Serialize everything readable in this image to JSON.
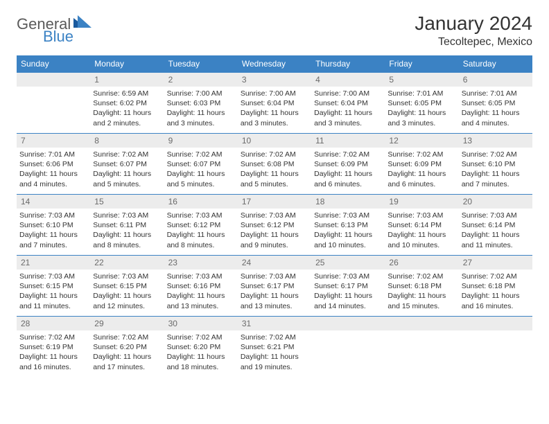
{
  "logo": {
    "text_general": "General",
    "text_blue": "Blue"
  },
  "header": {
    "month_title": "January 2024",
    "location": "Tecoltepec, Mexico"
  },
  "colors": {
    "header_bg": "#3b82c4",
    "header_text": "#ffffff",
    "daynum_bg": "#ececec",
    "daynum_text": "#6a6a6a",
    "body_text": "#333333",
    "logo_blue": "#3b82c4",
    "logo_gray": "#5a5a5a",
    "border": "#3b82c4"
  },
  "day_names": [
    "Sunday",
    "Monday",
    "Tuesday",
    "Wednesday",
    "Thursday",
    "Friday",
    "Saturday"
  ],
  "weeks": [
    [
      {
        "num": "",
        "sunrise": "",
        "sunset": "",
        "daylight": ""
      },
      {
        "num": "1",
        "sunrise": "Sunrise: 6:59 AM",
        "sunset": "Sunset: 6:02 PM",
        "daylight": "Daylight: 11 hours and 2 minutes."
      },
      {
        "num": "2",
        "sunrise": "Sunrise: 7:00 AM",
        "sunset": "Sunset: 6:03 PM",
        "daylight": "Daylight: 11 hours and 3 minutes."
      },
      {
        "num": "3",
        "sunrise": "Sunrise: 7:00 AM",
        "sunset": "Sunset: 6:04 PM",
        "daylight": "Daylight: 11 hours and 3 minutes."
      },
      {
        "num": "4",
        "sunrise": "Sunrise: 7:00 AM",
        "sunset": "Sunset: 6:04 PM",
        "daylight": "Daylight: 11 hours and 3 minutes."
      },
      {
        "num": "5",
        "sunrise": "Sunrise: 7:01 AM",
        "sunset": "Sunset: 6:05 PM",
        "daylight": "Daylight: 11 hours and 3 minutes."
      },
      {
        "num": "6",
        "sunrise": "Sunrise: 7:01 AM",
        "sunset": "Sunset: 6:05 PM",
        "daylight": "Daylight: 11 hours and 4 minutes."
      }
    ],
    [
      {
        "num": "7",
        "sunrise": "Sunrise: 7:01 AM",
        "sunset": "Sunset: 6:06 PM",
        "daylight": "Daylight: 11 hours and 4 minutes."
      },
      {
        "num": "8",
        "sunrise": "Sunrise: 7:02 AM",
        "sunset": "Sunset: 6:07 PM",
        "daylight": "Daylight: 11 hours and 5 minutes."
      },
      {
        "num": "9",
        "sunrise": "Sunrise: 7:02 AM",
        "sunset": "Sunset: 6:07 PM",
        "daylight": "Daylight: 11 hours and 5 minutes."
      },
      {
        "num": "10",
        "sunrise": "Sunrise: 7:02 AM",
        "sunset": "Sunset: 6:08 PM",
        "daylight": "Daylight: 11 hours and 5 minutes."
      },
      {
        "num": "11",
        "sunrise": "Sunrise: 7:02 AM",
        "sunset": "Sunset: 6:09 PM",
        "daylight": "Daylight: 11 hours and 6 minutes."
      },
      {
        "num": "12",
        "sunrise": "Sunrise: 7:02 AM",
        "sunset": "Sunset: 6:09 PM",
        "daylight": "Daylight: 11 hours and 6 minutes."
      },
      {
        "num": "13",
        "sunrise": "Sunrise: 7:02 AM",
        "sunset": "Sunset: 6:10 PM",
        "daylight": "Daylight: 11 hours and 7 minutes."
      }
    ],
    [
      {
        "num": "14",
        "sunrise": "Sunrise: 7:03 AM",
        "sunset": "Sunset: 6:10 PM",
        "daylight": "Daylight: 11 hours and 7 minutes."
      },
      {
        "num": "15",
        "sunrise": "Sunrise: 7:03 AM",
        "sunset": "Sunset: 6:11 PM",
        "daylight": "Daylight: 11 hours and 8 minutes."
      },
      {
        "num": "16",
        "sunrise": "Sunrise: 7:03 AM",
        "sunset": "Sunset: 6:12 PM",
        "daylight": "Daylight: 11 hours and 8 minutes."
      },
      {
        "num": "17",
        "sunrise": "Sunrise: 7:03 AM",
        "sunset": "Sunset: 6:12 PM",
        "daylight": "Daylight: 11 hours and 9 minutes."
      },
      {
        "num": "18",
        "sunrise": "Sunrise: 7:03 AM",
        "sunset": "Sunset: 6:13 PM",
        "daylight": "Daylight: 11 hours and 10 minutes."
      },
      {
        "num": "19",
        "sunrise": "Sunrise: 7:03 AM",
        "sunset": "Sunset: 6:14 PM",
        "daylight": "Daylight: 11 hours and 10 minutes."
      },
      {
        "num": "20",
        "sunrise": "Sunrise: 7:03 AM",
        "sunset": "Sunset: 6:14 PM",
        "daylight": "Daylight: 11 hours and 11 minutes."
      }
    ],
    [
      {
        "num": "21",
        "sunrise": "Sunrise: 7:03 AM",
        "sunset": "Sunset: 6:15 PM",
        "daylight": "Daylight: 11 hours and 11 minutes."
      },
      {
        "num": "22",
        "sunrise": "Sunrise: 7:03 AM",
        "sunset": "Sunset: 6:15 PM",
        "daylight": "Daylight: 11 hours and 12 minutes."
      },
      {
        "num": "23",
        "sunrise": "Sunrise: 7:03 AM",
        "sunset": "Sunset: 6:16 PM",
        "daylight": "Daylight: 11 hours and 13 minutes."
      },
      {
        "num": "24",
        "sunrise": "Sunrise: 7:03 AM",
        "sunset": "Sunset: 6:17 PM",
        "daylight": "Daylight: 11 hours and 13 minutes."
      },
      {
        "num": "25",
        "sunrise": "Sunrise: 7:03 AM",
        "sunset": "Sunset: 6:17 PM",
        "daylight": "Daylight: 11 hours and 14 minutes."
      },
      {
        "num": "26",
        "sunrise": "Sunrise: 7:02 AM",
        "sunset": "Sunset: 6:18 PM",
        "daylight": "Daylight: 11 hours and 15 minutes."
      },
      {
        "num": "27",
        "sunrise": "Sunrise: 7:02 AM",
        "sunset": "Sunset: 6:18 PM",
        "daylight": "Daylight: 11 hours and 16 minutes."
      }
    ],
    [
      {
        "num": "28",
        "sunrise": "Sunrise: 7:02 AM",
        "sunset": "Sunset: 6:19 PM",
        "daylight": "Daylight: 11 hours and 16 minutes."
      },
      {
        "num": "29",
        "sunrise": "Sunrise: 7:02 AM",
        "sunset": "Sunset: 6:20 PM",
        "daylight": "Daylight: 11 hours and 17 minutes."
      },
      {
        "num": "30",
        "sunrise": "Sunrise: 7:02 AM",
        "sunset": "Sunset: 6:20 PM",
        "daylight": "Daylight: 11 hours and 18 minutes."
      },
      {
        "num": "31",
        "sunrise": "Sunrise: 7:02 AM",
        "sunset": "Sunset: 6:21 PM",
        "daylight": "Daylight: 11 hours and 19 minutes."
      },
      {
        "num": "",
        "sunrise": "",
        "sunset": "",
        "daylight": ""
      },
      {
        "num": "",
        "sunrise": "",
        "sunset": "",
        "daylight": ""
      },
      {
        "num": "",
        "sunrise": "",
        "sunset": "",
        "daylight": ""
      }
    ]
  ]
}
